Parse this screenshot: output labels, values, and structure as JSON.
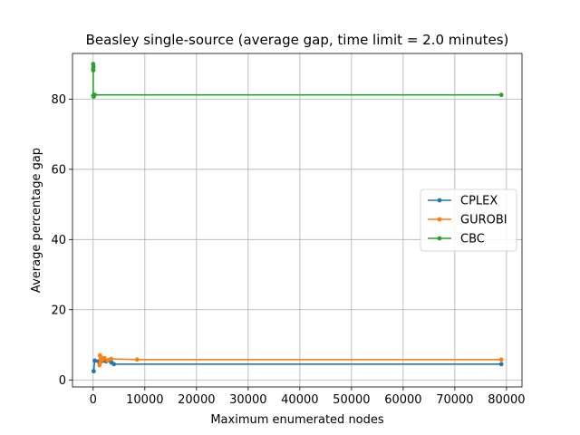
{
  "chart_data": {
    "type": "line",
    "title": "Beasley single-source (average gap, time limit = 2.0 minutes)",
    "xlabel": "Maximum enumerated nodes",
    "ylabel": "Average percentage gap",
    "xlim": [
      -4000,
      83000
    ],
    "ylim": [
      -2,
      93
    ],
    "xticks": [
      0,
      10000,
      20000,
      30000,
      40000,
      50000,
      60000,
      70000,
      80000
    ],
    "yticks": [
      0,
      20,
      40,
      60,
      80
    ],
    "grid": true,
    "legend_position": "center-right",
    "series": [
      {
        "name": "CPLEX",
        "color": "#1f77b4",
        "points": [
          [
            100,
            2.5
          ],
          [
            300,
            5.5
          ],
          [
            1000,
            5.3
          ],
          [
            1500,
            5.2
          ],
          [
            2000,
            5.5
          ],
          [
            2500,
            5.3
          ],
          [
            3000,
            5.6
          ],
          [
            3500,
            5.0
          ],
          [
            4000,
            4.5
          ],
          [
            79000,
            4.5
          ]
        ]
      },
      {
        "name": "GUROBI",
        "color": "#ff7f0e",
        "points": [
          [
            1200,
            4.2
          ],
          [
            1300,
            7.0
          ],
          [
            1400,
            5.0
          ],
          [
            1500,
            6.5
          ],
          [
            1800,
            5.8
          ],
          [
            2200,
            6.2
          ],
          [
            2800,
            5.5
          ],
          [
            3500,
            6.0
          ],
          [
            8500,
            5.8
          ],
          [
            79000,
            5.8
          ]
        ]
      },
      {
        "name": "CBC",
        "color": "#2ca02c",
        "points": [
          [
            0,
            90.0
          ],
          [
            0,
            88.5
          ],
          [
            50,
            89.2
          ],
          [
            20,
            88.2
          ],
          [
            10,
            81.0
          ],
          [
            100,
            80.7
          ],
          [
            300,
            81.2
          ],
          [
            79000,
            81.2
          ]
        ]
      }
    ]
  }
}
